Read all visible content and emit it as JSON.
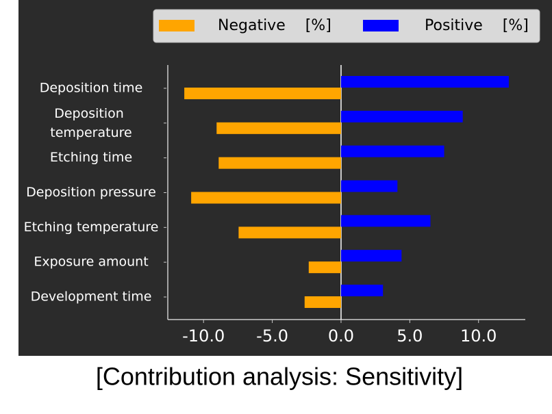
{
  "chart_data": {
    "type": "bar",
    "orientation": "horizontal",
    "caption": "[Contribution analysis: Sensitivity]",
    "categories": [
      "Deposition time",
      "Deposition temperature",
      "Etching time",
      "Deposition pressure",
      "Etching temperature",
      "Exposure amount",
      "Development time"
    ],
    "series": [
      {
        "name": "Negative [%]",
        "color": "#ffa500",
        "values": [
          -11.4,
          -9.05,
          -8.9,
          -10.9,
          -7.45,
          -2.35,
          -2.65
        ]
      },
      {
        "name": "Positive [%]",
        "color": "#0000ff",
        "values": [
          12.2,
          8.85,
          7.5,
          4.1,
          6.5,
          4.4,
          3.05
        ]
      }
    ],
    "xlim": [
      -12.6,
      13.4
    ],
    "xticks": [
      {
        "value": -10,
        "label": "-10.0"
      },
      {
        "value": -5,
        "label": "-5.0"
      },
      {
        "value": 0,
        "label": "0.0"
      },
      {
        "value": 5,
        "label": "5.0"
      },
      {
        "value": 10,
        "label": "10.0"
      }
    ],
    "legend": "top"
  }
}
